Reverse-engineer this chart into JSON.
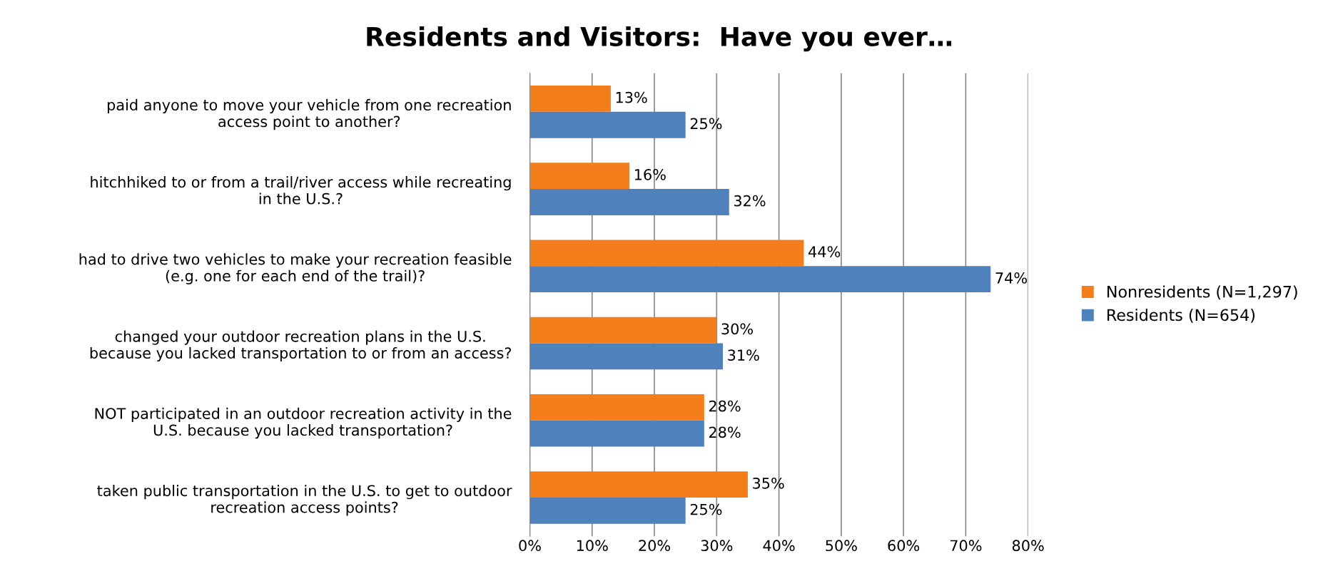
{
  "chart_data": {
    "type": "bar",
    "orientation": "horizontal",
    "title": "Residents and Visitors:  Have you ever…",
    "categories": [
      "paid anyone to move your vehicle from one recreation\naccess point to another?",
      "hitchhiked to or from a trail/river access while recreating\nin the U.S.?",
      "had to drive two vehicles to make your recreation feasible\n(e.g. one for each end of the trail)?",
      "changed your outdoor recreation plans in the U.S.\nbecause you lacked transportation to or from an access?",
      "NOT participated in an outdoor recreation activity in the\nU.S. because you lacked transportation?",
      "taken public transportation in the U.S. to get to outdoor\nrecreation access points?"
    ],
    "series": [
      {
        "name": "Nonresidents (N=1,297)",
        "color": "#f47e1c",
        "values": [
          13,
          16,
          44,
          30,
          28,
          35
        ],
        "value_labels": [
          "13%",
          "16%",
          "44%",
          "30%",
          "28%",
          "35%"
        ]
      },
      {
        "name": "Residents (N=654)",
        "color": "#4f81bd",
        "values": [
          25,
          32,
          74,
          31,
          28,
          25
        ],
        "value_labels": [
          "25%",
          "32%",
          "74%",
          "31%",
          "28%",
          "25%"
        ]
      }
    ],
    "xlim": [
      0,
      80
    ],
    "xticks": [
      {
        "value": 0,
        "label": "0%"
      },
      {
        "value": 10,
        "label": "10%"
      },
      {
        "value": 20,
        "label": "20%"
      },
      {
        "value": 30,
        "label": "30%"
      },
      {
        "value": 40,
        "label": "40%"
      },
      {
        "value": 50,
        "label": "50%"
      },
      {
        "value": 60,
        "label": "60%"
      },
      {
        "value": 70,
        "label": "70%"
      },
      {
        "value": 80,
        "label": "80%"
      }
    ],
    "grid": "x",
    "legend": "right"
  }
}
